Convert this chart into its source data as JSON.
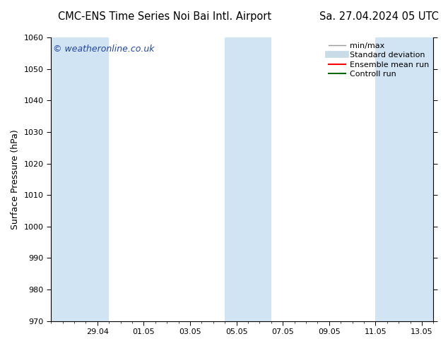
{
  "title_left": "CMC-ENS Time Series Noi Bai Intl. Airport",
  "title_right": "Sa. 27.04.2024 05 UTC",
  "ylabel": "Surface Pressure (hPa)",
  "ylim": [
    970,
    1060
  ],
  "yticks": [
    970,
    980,
    990,
    1000,
    1010,
    1020,
    1030,
    1040,
    1050,
    1060
  ],
  "xlim": [
    0,
    16.5
  ],
  "x_tick_labels": [
    "29.04",
    "01.05",
    "03.05",
    "05.05",
    "07.05",
    "09.05",
    "11.05",
    "13.05"
  ],
  "x_tick_positions": [
    2,
    4,
    6,
    8,
    10,
    12,
    14,
    16
  ],
  "shaded_bands": [
    {
      "x_start": 0.0,
      "x_end": 2.5
    },
    {
      "x_start": 7.5,
      "x_end": 9.5
    },
    {
      "x_start": 14.0,
      "x_end": 16.5
    }
  ],
  "band_color": "#d0e4f4",
  "background_color": "#ffffff",
  "watermark_text": "© weatheronline.co.uk",
  "watermark_color": "#2244aa",
  "legend_items": [
    {
      "label": "min/max",
      "color": "#999999",
      "linestyle": "-",
      "linewidth": 1.0
    },
    {
      "label": "Standard deviation",
      "color": "#c8dce8",
      "linestyle": "-",
      "linewidth": 7
    },
    {
      "label": "Ensemble mean run",
      "color": "#ff0000",
      "linestyle": "-",
      "linewidth": 1.5
    },
    {
      "label": "Controll run",
      "color": "#006600",
      "linestyle": "-",
      "linewidth": 1.5
    }
  ],
  "title_fontsize": 10.5,
  "ylabel_fontsize": 9,
  "tick_fontsize": 8,
  "watermark_fontsize": 9,
  "legend_fontsize": 8
}
